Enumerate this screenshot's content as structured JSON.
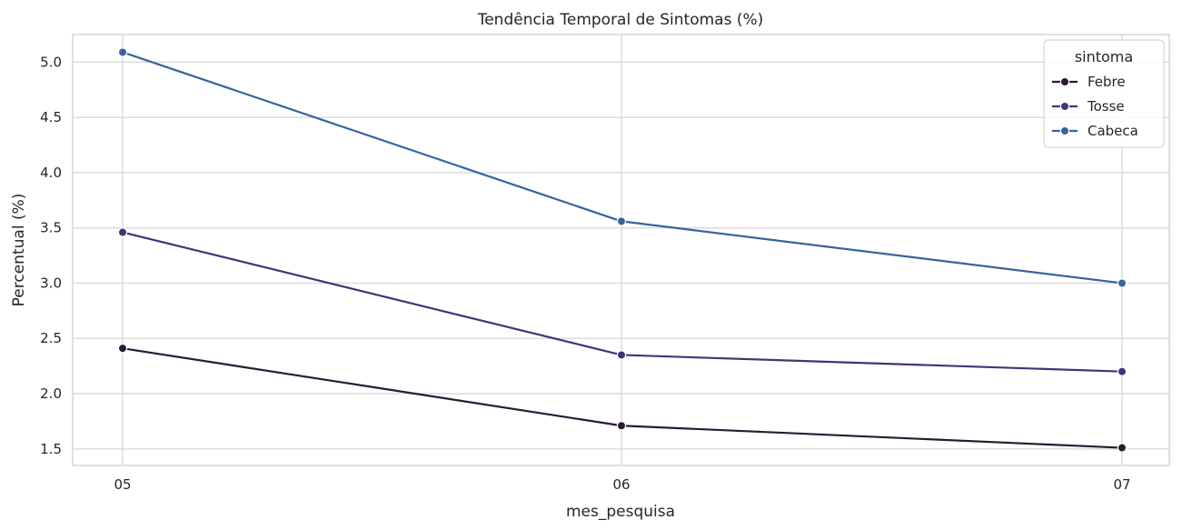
{
  "chart_data": {
    "type": "line",
    "title": "Tendência Temporal de Sintomas (%)",
    "xlabel": "mes_pesquisa",
    "ylabel": "Percentual (%)",
    "categories": [
      "05",
      "06",
      "07"
    ],
    "yticks": [
      "1.5",
      "2.0",
      "2.5",
      "3.0",
      "3.5",
      "4.0",
      "4.5",
      "5.0"
    ],
    "ylim": [
      1.35,
      5.25
    ],
    "grid": true,
    "legend": {
      "title": "sintoma",
      "placement": "top-right"
    },
    "series": [
      {
        "name": "Febre",
        "color": "#2b1a34",
        "values": [
          2.41,
          1.71,
          1.51
        ]
      },
      {
        "name": "Tosse",
        "color": "#3e3675",
        "values": [
          3.46,
          2.35,
          2.2
        ]
      },
      {
        "name": "Cabeca",
        "color": "#35659a",
        "values": [
          5.09,
          3.56,
          3.0
        ]
      }
    ]
  }
}
